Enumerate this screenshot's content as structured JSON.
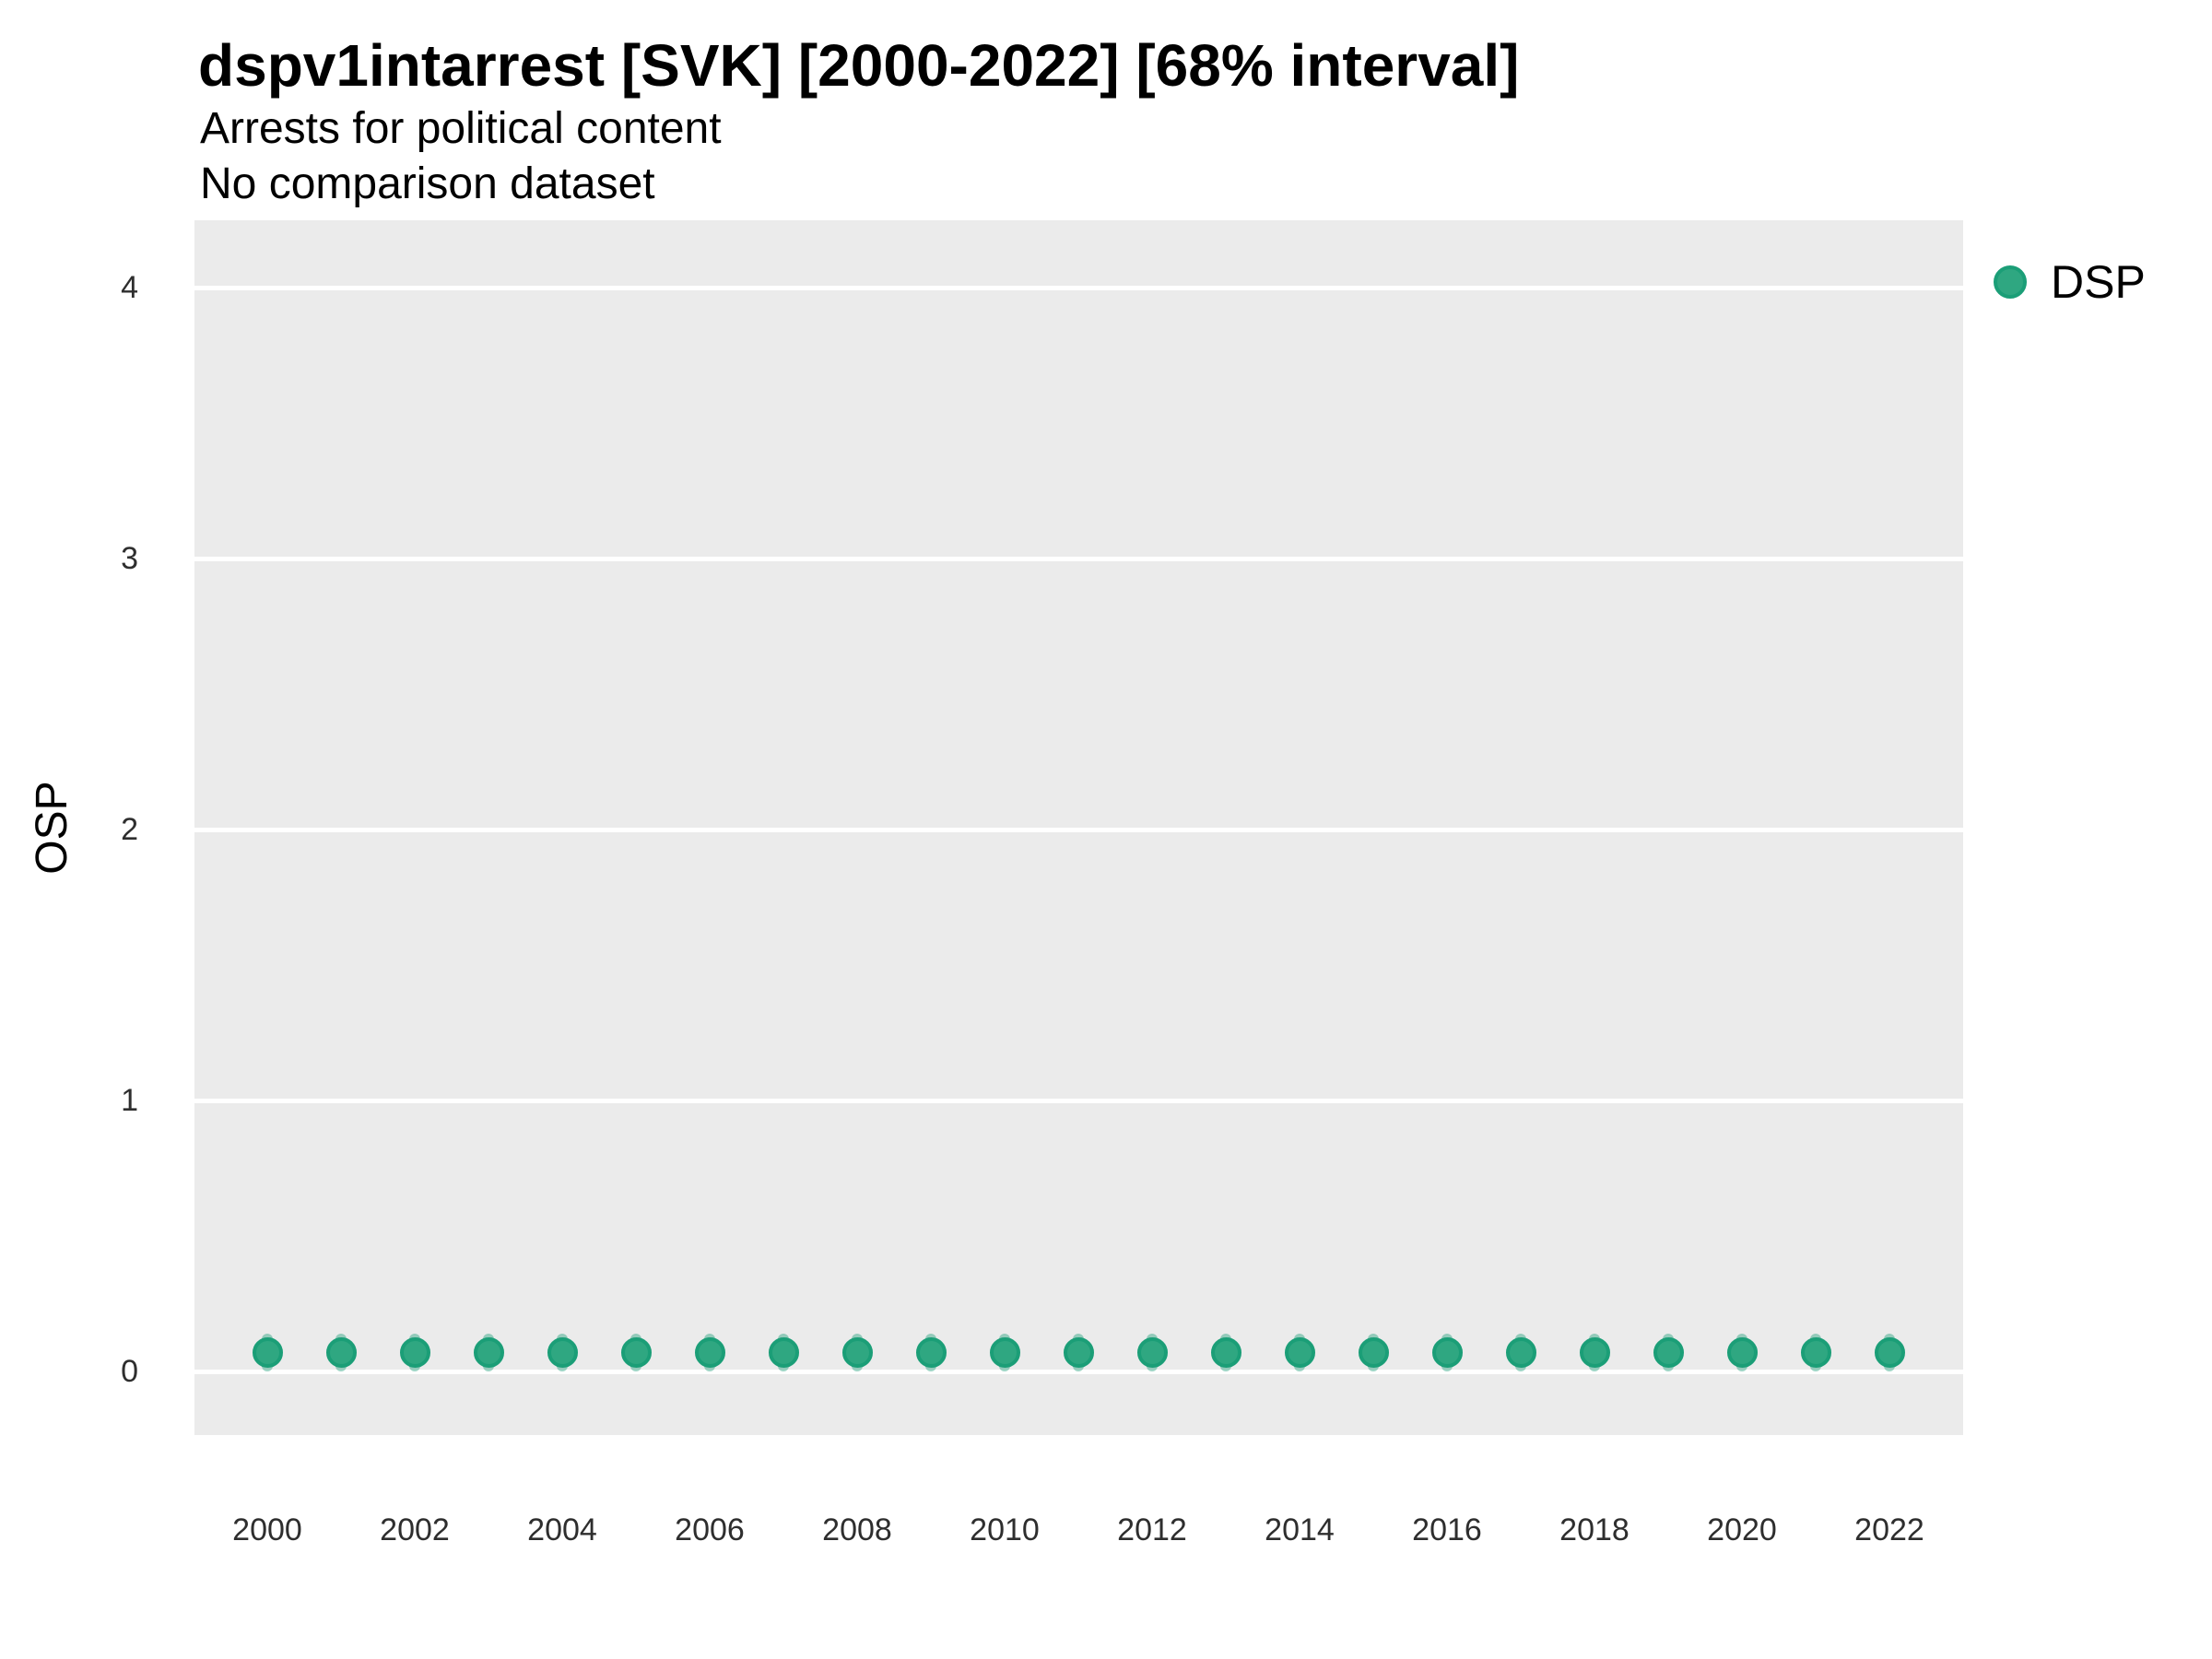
{
  "chart_data": {
    "type": "scatter",
    "title": "dspv1intarrest [SVK] [2000-2022] [68% interval]",
    "subtitle": "Arrests for political content",
    "subtitle2": "No comparison dataset",
    "xlabel": "",
    "ylabel": "OSP",
    "interval_level": "68%",
    "legend": {
      "position": "right-top",
      "entries": [
        {
          "label": "DSP",
          "color": "#2fa781",
          "stroke": "#1b9e77"
        }
      ]
    },
    "x": [
      2000,
      2001,
      2002,
      2003,
      2004,
      2005,
      2006,
      2007,
      2008,
      2009,
      2010,
      2011,
      2012,
      2013,
      2014,
      2015,
      2016,
      2017,
      2018,
      2019,
      2020,
      2021,
      2022
    ],
    "series": [
      {
        "name": "DSP",
        "values": [
          0.07,
          0.07,
          0.07,
          0.07,
          0.07,
          0.07,
          0.07,
          0.07,
          0.07,
          0.07,
          0.07,
          0.07,
          0.07,
          0.07,
          0.07,
          0.07,
          0.07,
          0.07,
          0.07,
          0.07,
          0.07,
          0.07,
          0.07
        ],
        "interval_low": [
          0.0,
          0.0,
          0.0,
          0.0,
          0.0,
          0.0,
          0.0,
          0.0,
          0.0,
          0.0,
          0.0,
          0.0,
          0.0,
          0.0,
          0.0,
          0.0,
          0.0,
          0.0,
          0.0,
          0.0,
          0.0,
          0.0,
          0.0
        ],
        "interval_high": [
          0.14,
          0.14,
          0.14,
          0.14,
          0.14,
          0.14,
          0.14,
          0.14,
          0.14,
          0.14,
          0.14,
          0.14,
          0.14,
          0.14,
          0.14,
          0.14,
          0.14,
          0.14,
          0.14,
          0.14,
          0.14,
          0.14,
          0.14
        ]
      }
    ],
    "xticks": [
      2000,
      2002,
      2004,
      2006,
      2008,
      2010,
      2012,
      2014,
      2016,
      2018,
      2020,
      2022
    ],
    "yticks": [
      0,
      1,
      2,
      3,
      4
    ],
    "xlim": [
      1999,
      2023
    ],
    "ylim": [
      -0.23,
      4.25
    ],
    "grid": "horizontal-major-only",
    "colors": {
      "panel_bg": "#ebebeb",
      "grid": "#ffffff",
      "point_fill": "#2fa781",
      "point_stroke": "#1b9e77",
      "interval": "#1b9e77",
      "interval_opacity": 0.42,
      "tick_text": "#2e2e2e",
      "text": "#000000"
    }
  }
}
